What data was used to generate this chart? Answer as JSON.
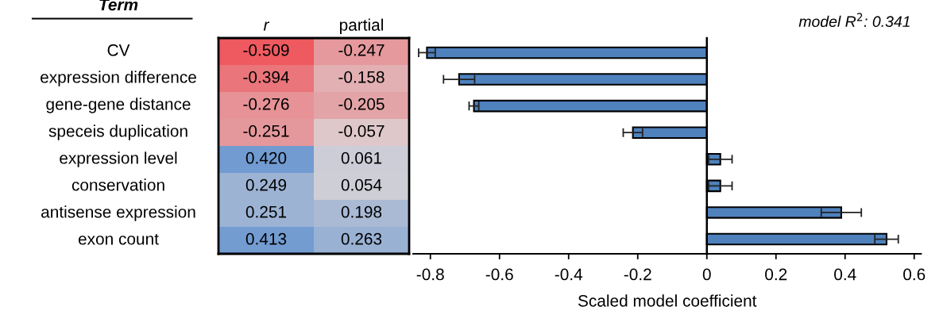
{
  "chart_data": [
    {
      "type": "heatmap",
      "ylabel": "Term",
      "categories": [
        "r",
        "partial"
      ],
      "y_categories": [
        "CV",
        "expression difference",
        "gene-gene distance",
        "speceis duplication",
        "expression level",
        "conservation",
        "antisense expression",
        "exon count"
      ],
      "cells": [
        [
          -0.509,
          -0.247
        ],
        [
          -0.394,
          -0.158
        ],
        [
          -0.276,
          -0.205
        ],
        [
          -0.251,
          -0.057
        ],
        [
          0.42,
          0.061
        ],
        [
          0.249,
          0.054
        ],
        [
          0.251,
          0.198
        ],
        [
          0.413,
          0.263
        ]
      ],
      "cell_labels": [
        [
          "-0.509",
          "-0.247"
        ],
        [
          "-0.394",
          "-0.158"
        ],
        [
          "-0.276",
          "-0.205"
        ],
        [
          "-0.251",
          "-0.057"
        ],
        [
          "0.420",
          "0.061"
        ],
        [
          "0.249",
          "0.054"
        ],
        [
          "0.251",
          "0.198"
        ],
        [
          "0.413",
          "0.263"
        ]
      ]
    },
    {
      "type": "bar",
      "orientation": "horizontal",
      "xlabel": "Scaled model coefficient",
      "annotations": [
        "model R$^{2}$: 0.341"
      ],
      "categories": [
        null,
        null,
        null,
        null,
        null,
        null,
        null,
        null
      ],
      "tick_labels": "x",
      "series": [
        {
          "color": "#4f81bd",
          "values": [
            -0.81,
            -0.717,
            -0.674,
            -0.214,
            0.039,
            0.039,
            0.389,
            0.52
          ],
          "errors": [
            0.024,
            0.045,
            0.014,
            0.028,
            0.034,
            0.034,
            0.058,
            0.034
          ]
        }
      ],
      "xlim": [
        -0.85,
        0.62
      ],
      "xticks": [
        -0.8,
        -0.6,
        -0.4,
        -0.2,
        0,
        0.2,
        0.4,
        0.6
      ]
    }
  ]
}
